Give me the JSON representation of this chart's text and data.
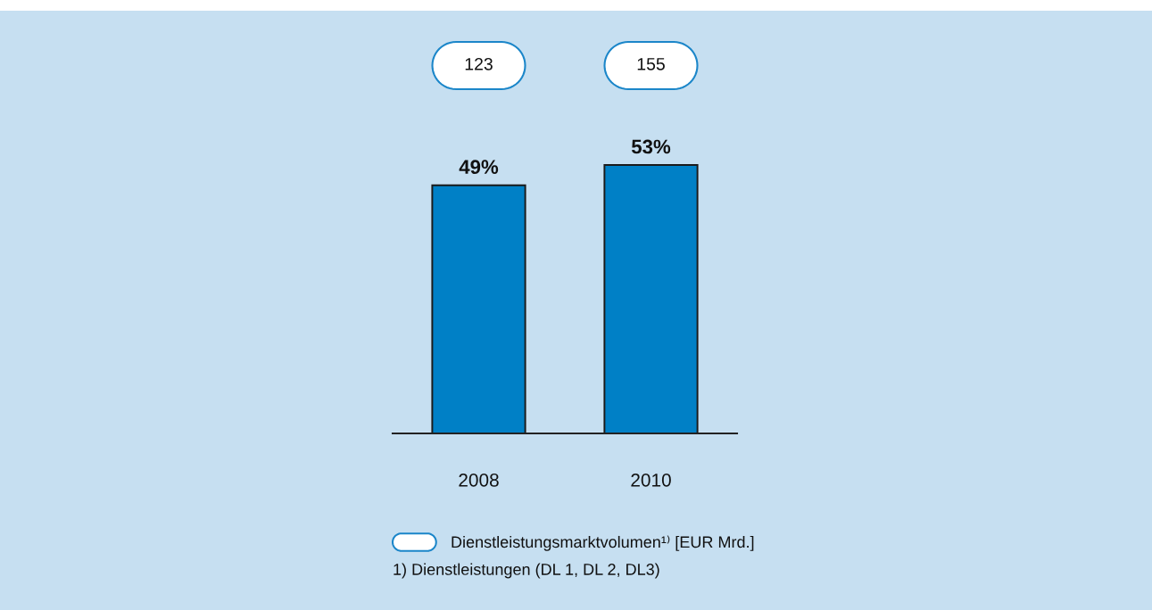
{
  "chart_data": {
    "type": "other",
    "categories": [
      "2008",
      "2010"
    ],
    "series": [
      {
        "type": "bar",
        "color": "#0080c6",
        "values": [
          49,
          53
        ],
        "value_labels": [
          "49%",
          "53%"
        ]
      },
      {
        "name": "Dienstleistungsmarktvolumen¹⁾ [EUR Mrd.]",
        "color": "#ffffff",
        "values": [
          123,
          155
        ],
        "value_labels": [
          "123",
          "155"
        ]
      }
    ],
    "legend": "bottom",
    "annotations": [
      "1) Dienstleistungen (DL 1, DL 2, DL3)"
    ]
  }
}
